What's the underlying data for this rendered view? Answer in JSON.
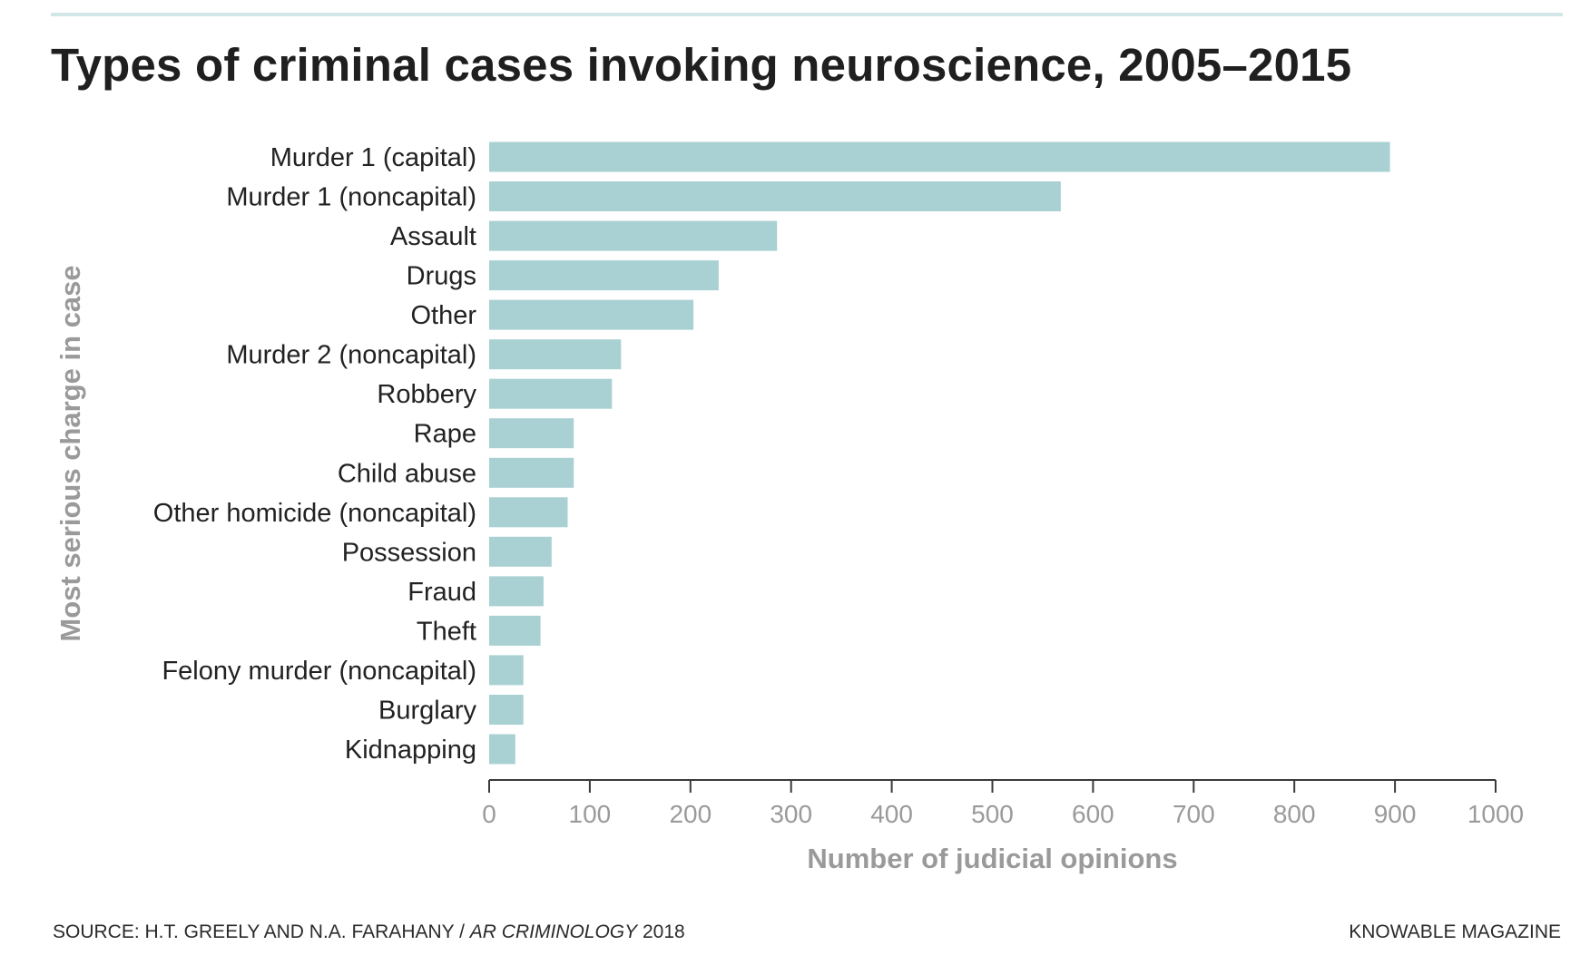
{
  "chart_data": {
    "type": "bar",
    "orientation": "horizontal",
    "title": "Types of criminal cases invoking neuroscience, 2005–2015",
    "xlabel": "Number of judicial opinions",
    "ylabel": "Most serious charge in case",
    "categories": [
      "Murder 1 (capital)",
      "Murder 1 (noncapital)",
      "Assault",
      "Drugs",
      "Other",
      "Murder 2 (noncapital)",
      "Robbery",
      "Rape",
      "Child abuse",
      "Other homicide (noncapital)",
      "Possession",
      "Fraud",
      "Theft",
      "Felony murder (noncapital)",
      "Burglary",
      "Kidnapping"
    ],
    "values": [
      895,
      568,
      286,
      228,
      203,
      131,
      122,
      84,
      84,
      78,
      62,
      54,
      51,
      34,
      34,
      26
    ],
    "xlim": [
      0,
      1000
    ],
    "xticks": [
      "0",
      "100",
      "200",
      "300",
      "400",
      "500",
      "600",
      "700",
      "800",
      "900",
      "1000"
    ],
    "grid": false,
    "bar_color": "#a9d1d3"
  },
  "source": {
    "prefix": "SOURCE: H.T. GREELY AND N.A. FARAHANY / ",
    "journal": "AR CRIMINOLOGY",
    "year": " 2018"
  },
  "brand": "KNOWABLE MAGAZINE",
  "colors": {
    "bar": "#a9d1d3",
    "rule": "#d2e6e7",
    "axis_label": "#9a9a9a",
    "text": "#222222"
  }
}
